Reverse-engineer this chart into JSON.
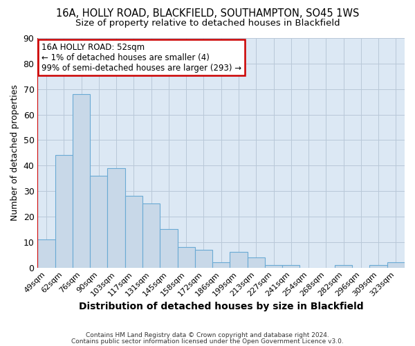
{
  "title": "16A, HOLLY ROAD, BLACKFIELD, SOUTHAMPTON, SO45 1WS",
  "subtitle": "Size of property relative to detached houses in Blackfield",
  "xlabel": "Distribution of detached houses by size in Blackfield",
  "ylabel": "Number of detached properties",
  "bar_color": "#c8d8e8",
  "bar_edge_color": "#6aaad4",
  "background_color": "#dce8f4",
  "categories": [
    "49sqm",
    "62sqm",
    "76sqm",
    "90sqm",
    "103sqm",
    "117sqm",
    "131sqm",
    "145sqm",
    "158sqm",
    "172sqm",
    "186sqm",
    "199sqm",
    "213sqm",
    "227sqm",
    "241sqm",
    "254sqm",
    "268sqm",
    "282sqm",
    "296sqm",
    "309sqm",
    "323sqm"
  ],
  "values": [
    11,
    44,
    68,
    36,
    39,
    28,
    25,
    15,
    8,
    7,
    2,
    6,
    4,
    1,
    1,
    0,
    0,
    1,
    0,
    1,
    2
  ],
  "ylim": [
    0,
    90
  ],
  "yticks": [
    0,
    10,
    20,
    30,
    40,
    50,
    60,
    70,
    80,
    90
  ],
  "annotation_title": "16A HOLLY ROAD: 52sqm",
  "annotation_line1": "← 1% of detached houses are smaller (4)",
  "annotation_line2": "99% of semi-detached houses are larger (293) →",
  "annotation_box_color": "#ffffff",
  "annotation_box_edge_color": "#cc0000",
  "marker_line_color": "#cc0000",
  "footer1": "Contains HM Land Registry data © Crown copyright and database right 2024.",
  "footer2": "Contains public sector information licensed under the Open Government Licence v3.0."
}
